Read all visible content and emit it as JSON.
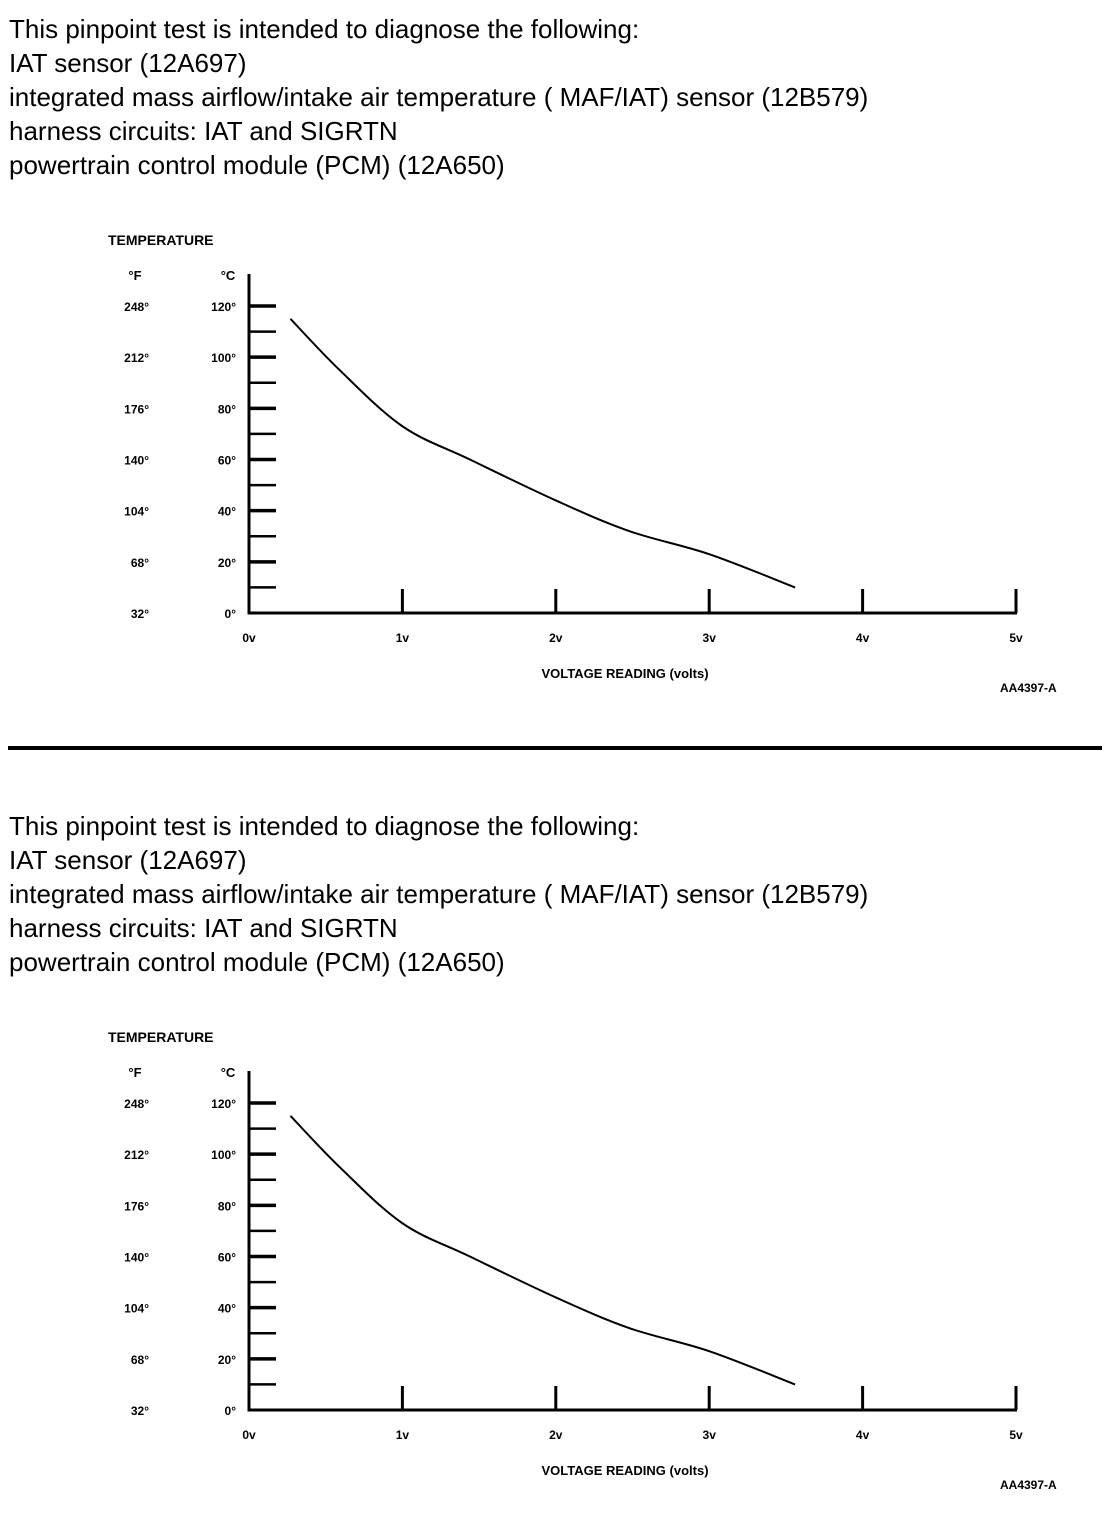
{
  "sections": [
    {
      "intro_lines": [
        "This pinpoint test is intended to diagnose the following:",
        "IAT sensor (12A697)",
        "integrated mass airflow/intake air temperature ( MAF/IAT) sensor (12B579)",
        "harness circuits: IAT and SIGRTN",
        "powertrain control module (PCM) (12A650)"
      ]
    },
    {
      "intro_lines": [
        "This pinpoint test is intended to diagnose the following:",
        "IAT sensor (12A697)",
        "integrated mass airflow/intake air temperature ( MAF/IAT) sensor (12B579)",
        "harness circuits: IAT and SIGRTN",
        "powertrain control module (PCM) (12A650)"
      ]
    }
  ],
  "chart_data": [
    {
      "type": "line",
      "title": "TEMPERATURE",
      "y_unit_labels": [
        "°F",
        "°C"
      ],
      "xlabel": "VOLTAGE READING (volts)",
      "figure_code": "AA4397-A",
      "xlim": [
        0,
        5
      ],
      "ylim": [
        0,
        120
      ],
      "x_ticks": [
        0,
        1,
        2,
        3,
        4,
        5
      ],
      "x_tick_labels": [
        "0v",
        "1v",
        "2v",
        "3v",
        "4v",
        "5v"
      ],
      "y_ticks_c": [
        0,
        20,
        40,
        60,
        80,
        100,
        120
      ],
      "y_tick_labels_c": [
        "0°",
        "20°",
        "40°",
        "60°",
        "80°",
        "100°",
        "120°"
      ],
      "y_tick_labels_f": [
        "32°",
        "68°",
        "104°",
        "140°",
        "176°",
        "212°",
        "248°"
      ],
      "grid": false,
      "series": [
        {
          "x": [
            0.27,
            0.59,
            1.0,
            1.44,
            2.0,
            2.48,
            3.0,
            3.56
          ],
          "y": [
            115,
            95,
            73,
            60,
            44,
            32,
            23,
            10
          ]
        }
      ]
    },
    {
      "type": "line",
      "title": "TEMPERATURE",
      "y_unit_labels": [
        "°F",
        "°C"
      ],
      "xlabel": "VOLTAGE READING (volts)",
      "figure_code": "AA4397-A",
      "xlim": [
        0,
        5
      ],
      "ylim": [
        0,
        120
      ],
      "x_ticks": [
        0,
        1,
        2,
        3,
        4,
        5
      ],
      "x_tick_labels": [
        "0v",
        "1v",
        "2v",
        "3v",
        "4v",
        "5v"
      ],
      "y_ticks_c": [
        0,
        20,
        40,
        60,
        80,
        100,
        120
      ],
      "y_tick_labels_c": [
        "0°",
        "20°",
        "40°",
        "60°",
        "80°",
        "100°",
        "120°"
      ],
      "y_tick_labels_f": [
        "32°",
        "68°",
        "104°",
        "140°",
        "176°",
        "212°",
        "248°"
      ],
      "grid": false,
      "series": [
        {
          "x": [
            0.27,
            0.59,
            1.0,
            1.44,
            2.0,
            2.48,
            3.0,
            3.56
          ],
          "y": [
            115,
            95,
            73,
            60,
            44,
            32,
            23,
            10
          ]
        }
      ]
    }
  ]
}
